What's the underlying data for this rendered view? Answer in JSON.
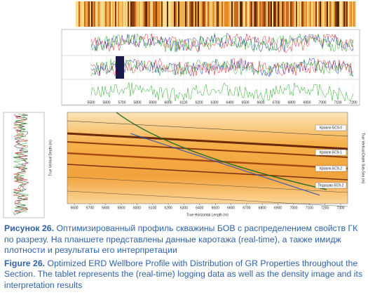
{
  "figure": {
    "logs": {
      "x_ticks": [
        "5500",
        "5600",
        "5700",
        "5800",
        "5900",
        "6000",
        "6100",
        "6200",
        "6300",
        "6400",
        "6500",
        "6600",
        "6700",
        "6800",
        "6900",
        "7000",
        "7100",
        "7200"
      ]
    },
    "section": {
      "x_axis_title": "True Horizontal Length (m)",
      "y_axis_title": "True Vertical Depth (m)",
      "y2_axis_title": "True Vertical Depth Sub-Sea (m)",
      "x_ticks": [
        "5600",
        "5700",
        "5800",
        "5900",
        "6000",
        "6100",
        "6200",
        "6300",
        "6400",
        "6500",
        "6600",
        "6700",
        "6800",
        "6900",
        "7000",
        "7100",
        "7200",
        "7300"
      ],
      "horizons": [
        "Кровля БС9-0",
        "Кровля БС9-1",
        "Кровля БС9-2",
        "Подошва БС9-2"
      ]
    },
    "caption_ru": {
      "label": "Рисунок 26.",
      "text": "Оптимизированный профиль скважины БОВ с распределением свойств ГК по разрезу. На планшете представлены данные каротажа (real-time), а также имидж плотности и результаты его интерпретации"
    },
    "caption_en": {
      "label": "Figure 26.",
      "text": "Optimized ERD Wellbore Profile with Distribution of GR Properties throughout the Section. The tablet represents the (real-time) logging data as well as the density image and its interpretation results"
    }
  }
}
